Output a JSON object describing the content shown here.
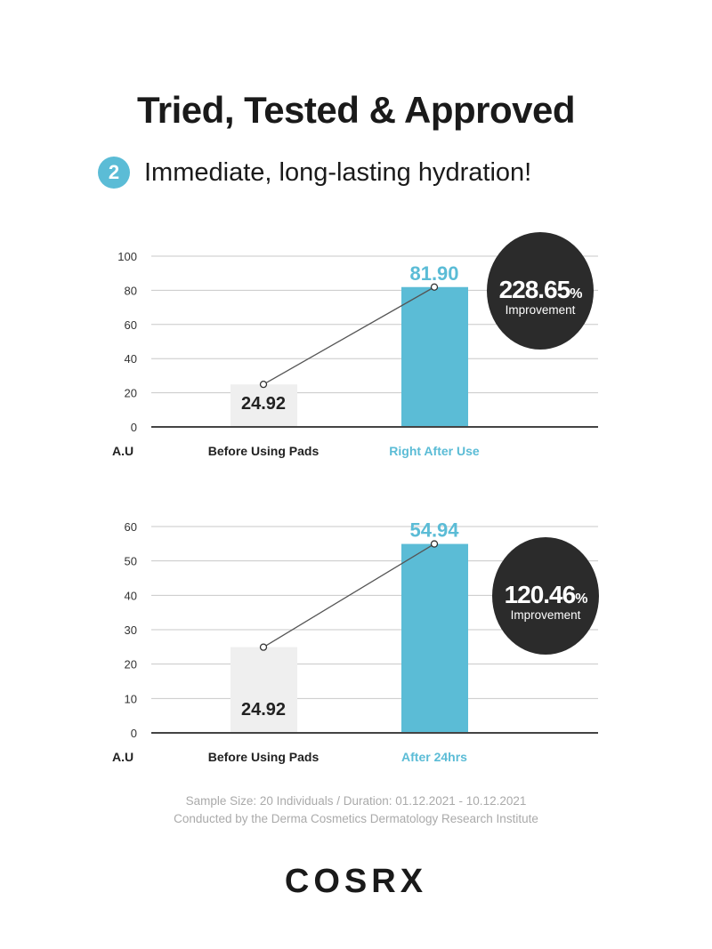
{
  "title": "Tried, Tested & Approved",
  "section": {
    "number": "2",
    "heading": "Immediate, long-lasting hydration!"
  },
  "colors": {
    "accent": "#5bbcd6",
    "before_bar": "#efefef",
    "circle": "#2b2b2b"
  },
  "chart_data": [
    {
      "type": "bar",
      "ylabel": "A.U",
      "ylim": [
        0,
        100
      ],
      "yticks": [
        0,
        20,
        40,
        60,
        80,
        100
      ],
      "grid": true,
      "categories": [
        "Before Using Pads",
        "Right After Use"
      ],
      "values": [
        24.92,
        81.9
      ],
      "value_labels": [
        "24.92",
        "81.90"
      ],
      "annotation": {
        "value": "228.65",
        "unit": "%",
        "label": "Improvement"
      }
    },
    {
      "type": "bar",
      "ylabel": "A.U",
      "ylim": [
        0,
        60
      ],
      "yticks": [
        0,
        10,
        20,
        30,
        40,
        50,
        60
      ],
      "grid": true,
      "categories": [
        "Before Using Pads",
        "After 24hrs"
      ],
      "values": [
        24.92,
        54.94
      ],
      "value_labels": [
        "24.92",
        "54.94"
      ],
      "annotation": {
        "value": "120.46",
        "unit": "%",
        "label": "Improvement"
      }
    }
  ],
  "footer": {
    "line1": "Sample Size: 20 Individuals  /  Duration: 01.12.2021 - 10.12.2021",
    "line2": "Conducted by the Derma Cosmetics Dermatology Research Institute"
  },
  "logo": "COSRX"
}
